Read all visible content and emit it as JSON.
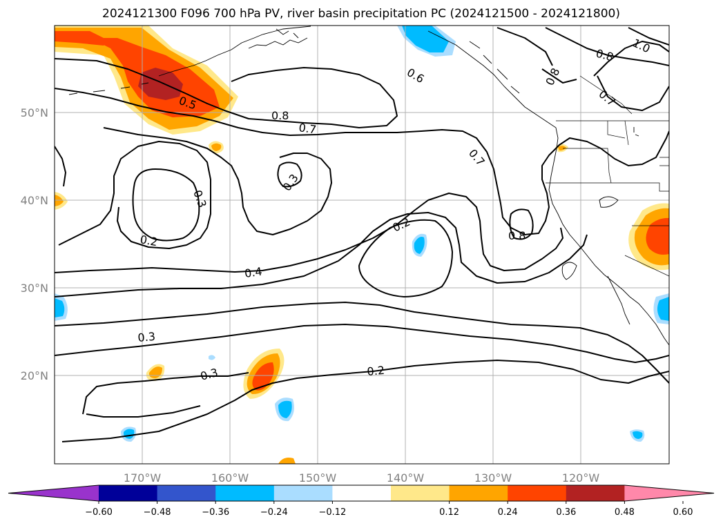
{
  "title": "2024121300 F096 700 hPa PV, river basin precipitation PC (2024121500 - 2024121800)",
  "lon_ticks": [
    "170°W",
    "160°W",
    "150°W",
    "140°W",
    "130°W",
    "120°W"
  ],
  "lat_ticks": [
    "50°N",
    "40°N",
    "30°N",
    "20°N"
  ],
  "contour_labels": [
    {
      "text": "0.5"
    },
    {
      "text": "0.8"
    },
    {
      "text": "0.7"
    },
    {
      "text": "0.3"
    },
    {
      "text": "0.3"
    },
    {
      "text": "0.2"
    },
    {
      "text": "0.4"
    },
    {
      "text": "0.6"
    },
    {
      "text": "0.7"
    },
    {
      "text": "0.2"
    },
    {
      "text": "0.8"
    },
    {
      "text": "0.3"
    },
    {
      "text": "0.3"
    },
    {
      "text": "0.2"
    },
    {
      "text": "0.8"
    },
    {
      "text": "0.7"
    },
    {
      "text": "0.8"
    },
    {
      "text": "1.0"
    }
  ],
  "colorbar": {
    "colors": [
      "#9933cc",
      "#000099",
      "#3355cc",
      "#00bbff",
      "#aaddff",
      "#ffffff",
      "#ffe88a",
      "#ffa500",
      "#ff4400",
      "#b22222",
      "#ff88aa"
    ],
    "ticks": [
      "−0.60",
      "−0.48",
      "−0.36",
      "−0.24",
      "−0.12",
      "0.12",
      "0.24",
      "0.36",
      "0.48",
      "0.60"
    ]
  }
}
